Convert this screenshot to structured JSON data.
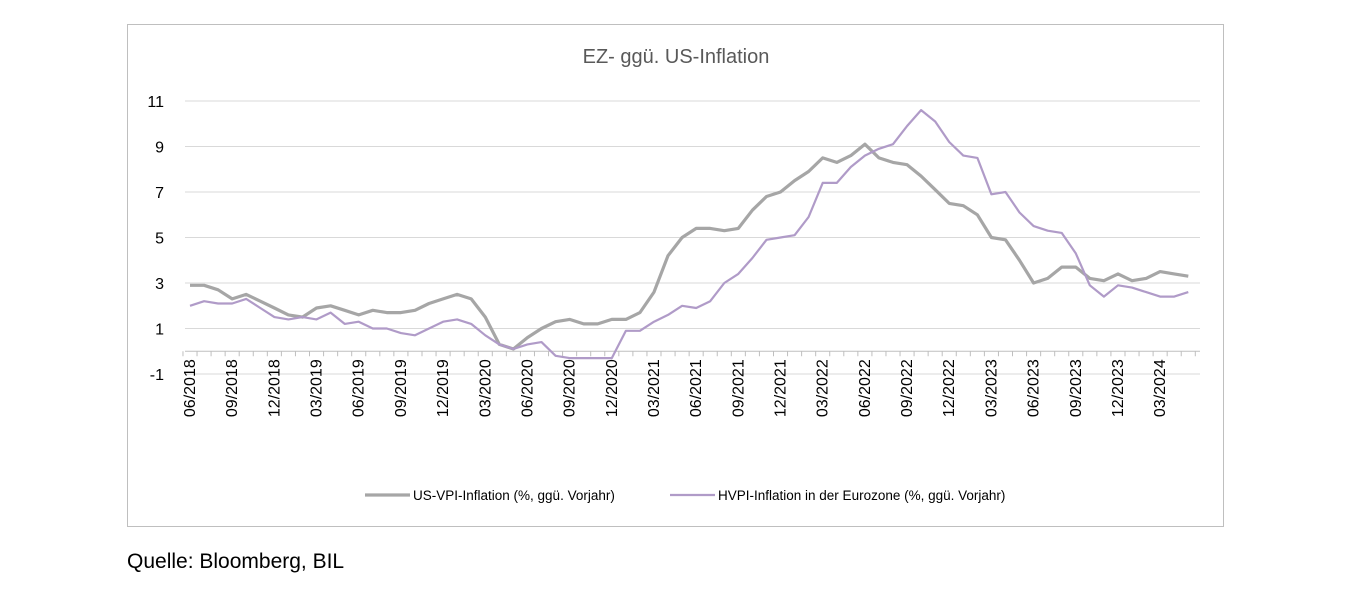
{
  "chart_data": {
    "type": "line",
    "title": "EZ- ggü. US-Inflation",
    "xlabel": "",
    "ylabel": "",
    "ylim": [
      -1,
      11
    ],
    "y_ticks": [
      -1,
      1,
      3,
      5,
      7,
      9,
      11
    ],
    "grid": true,
    "legend_position": "bottom",
    "x": [
      "2018-06",
      "2018-07",
      "2018-08",
      "2018-09",
      "2018-10",
      "2018-11",
      "2018-12",
      "2019-01",
      "2019-02",
      "2019-03",
      "2019-04",
      "2019-05",
      "2019-06",
      "2019-07",
      "2019-08",
      "2019-09",
      "2019-10",
      "2019-11",
      "2019-12",
      "2020-01",
      "2020-02",
      "2020-03",
      "2020-04",
      "2020-05",
      "2020-06",
      "2020-07",
      "2020-08",
      "2020-09",
      "2020-10",
      "2020-11",
      "2020-12",
      "2021-01",
      "2021-02",
      "2021-03",
      "2021-04",
      "2021-05",
      "2021-06",
      "2021-07",
      "2021-08",
      "2021-09",
      "2021-10",
      "2021-11",
      "2021-12",
      "2022-01",
      "2022-02",
      "2022-03",
      "2022-04",
      "2022-05",
      "2022-06",
      "2022-07",
      "2022-08",
      "2022-09",
      "2022-10",
      "2022-11",
      "2022-12",
      "2023-01",
      "2023-02",
      "2023-03",
      "2023-04",
      "2023-05",
      "2023-06",
      "2023-07",
      "2023-08",
      "2023-09",
      "2023-10",
      "2023-11",
      "2023-12",
      "2024-01",
      "2024-02",
      "2024-03",
      "2024-04",
      "2024-05"
    ],
    "x_tick_labels": [
      "06/2018",
      "09/2018",
      "12/2018",
      "03/2019",
      "06/2019",
      "09/2019",
      "12/2019",
      "03/2020",
      "06/2020",
      "09/2020",
      "12/2020",
      "03/2021",
      "06/2021",
      "09/2021",
      "12/2021",
      "03/2022",
      "06/2022",
      "09/2022",
      "12/2022",
      "03/2023",
      "06/2023",
      "09/2023",
      "12/2023",
      "03/2024"
    ],
    "series": [
      {
        "name": "US-VPI-Inflation (%, ggü. Vorjahr)",
        "color": "#a6a6a6",
        "values": [
          2.9,
          2.9,
          2.7,
          2.3,
          2.5,
          2.2,
          1.9,
          1.6,
          1.5,
          1.9,
          2.0,
          1.8,
          1.6,
          1.8,
          1.7,
          1.7,
          1.8,
          2.1,
          2.3,
          2.5,
          2.3,
          1.5,
          0.3,
          0.1,
          0.6,
          1.0,
          1.3,
          1.4,
          1.2,
          1.2,
          1.4,
          1.4,
          1.7,
          2.6,
          4.2,
          5.0,
          5.4,
          5.4,
          5.3,
          5.4,
          6.2,
          6.8,
          7.0,
          7.5,
          7.9,
          8.5,
          8.3,
          8.6,
          9.1,
          8.5,
          8.3,
          8.2,
          7.7,
          7.1,
          6.5,
          6.4,
          6.0,
          5.0,
          4.9,
          4.0,
          3.0,
          3.2,
          3.7,
          3.7,
          3.2,
          3.1,
          3.4,
          3.1,
          3.2,
          3.5,
          3.4,
          3.3
        ]
      },
      {
        "name": "HVPI-Inflation in der Eurozone (%, ggü. Vorjahr)",
        "color": "#b09bc8",
        "values": [
          2.0,
          2.2,
          2.1,
          2.1,
          2.3,
          1.9,
          1.5,
          1.4,
          1.5,
          1.4,
          1.7,
          1.2,
          1.3,
          1.0,
          1.0,
          0.8,
          0.7,
          1.0,
          1.3,
          1.4,
          1.2,
          0.7,
          0.3,
          0.1,
          0.3,
          0.4,
          -0.2,
          -0.3,
          -0.3,
          -0.3,
          -0.3,
          0.9,
          0.9,
          1.3,
          1.6,
          2.0,
          1.9,
          2.2,
          3.0,
          3.4,
          4.1,
          4.9,
          5.0,
          5.1,
          5.9,
          7.4,
          7.4,
          8.1,
          8.6,
          8.9,
          9.1,
          9.9,
          10.6,
          10.1,
          9.2,
          8.6,
          8.5,
          6.9,
          7.0,
          6.1,
          5.5,
          5.3,
          5.2,
          4.3,
          2.9,
          2.4,
          2.9,
          2.8,
          2.6,
          2.4,
          2.4,
          2.6
        ]
      }
    ]
  },
  "source_note": "Quelle: Bloomberg, BIL"
}
